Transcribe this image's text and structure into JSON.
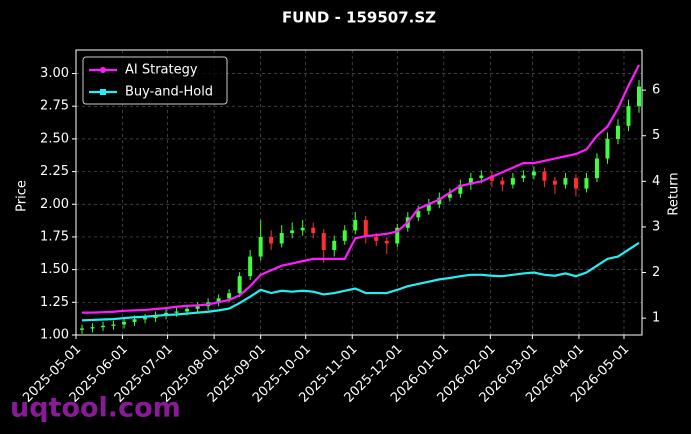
{
  "chart_data": {
    "type": "candlestick",
    "title": "FUND - 159507.SZ",
    "y_label": "Price",
    "y2_label": "Return",
    "watermark": "uqtool.com",
    "x": [
      "2025-05-05",
      "2025-05-12",
      "2025-05-19",
      "2025-05-26",
      "2025-06-02",
      "2025-06-09",
      "2025-06-16",
      "2025-06-23",
      "2025-06-30",
      "2025-07-07",
      "2025-07-14",
      "2025-07-21",
      "2025-07-28",
      "2025-08-04",
      "2025-08-11",
      "2025-08-18",
      "2025-08-25",
      "2025-09-01",
      "2025-09-08",
      "2025-09-15",
      "2025-09-22",
      "2025-09-29",
      "2025-10-06",
      "2025-10-13",
      "2025-10-20",
      "2025-10-27",
      "2025-11-03",
      "2025-11-10",
      "2025-11-17",
      "2025-11-24",
      "2025-12-01",
      "2025-12-08",
      "2025-12-15",
      "2025-12-22",
      "2025-12-29",
      "2026-01-05",
      "2026-01-12",
      "2026-01-19",
      "2026-01-26",
      "2026-02-02",
      "2026-02-09",
      "2026-02-16",
      "2026-02-23",
      "2026-03-02",
      "2026-03-09",
      "2026-03-16",
      "2026-03-23",
      "2026-03-30",
      "2026-04-06",
      "2026-04-13",
      "2026-04-20",
      "2026-04-27",
      "2026-05-04",
      "2026-05-11"
    ],
    "candles": {
      "open": [
        1.04,
        1.05,
        1.06,
        1.07,
        1.08,
        1.1,
        1.12,
        1.13,
        1.15,
        1.17,
        1.18,
        1.2,
        1.22,
        1.25,
        1.28,
        1.32,
        1.45,
        1.6,
        1.75,
        1.7,
        1.78,
        1.8,
        1.82,
        1.78,
        1.65,
        1.72,
        1.8,
        1.88,
        1.75,
        1.72,
        1.7,
        1.82,
        1.9,
        1.95,
        2.0,
        2.05,
        2.08,
        2.15,
        2.2,
        2.22,
        2.18,
        2.15,
        2.2,
        2.22,
        2.25,
        2.18,
        2.15,
        2.2,
        2.12,
        2.2,
        2.35,
        2.5,
        2.6,
        2.75
      ],
      "high": [
        1.08,
        1.09,
        1.1,
        1.11,
        1.13,
        1.15,
        1.16,
        1.18,
        1.2,
        1.21,
        1.23,
        1.25,
        1.28,
        1.31,
        1.35,
        1.48,
        1.65,
        1.88,
        1.8,
        1.84,
        1.86,
        1.88,
        1.86,
        1.81,
        1.76,
        1.84,
        1.94,
        1.91,
        1.78,
        1.75,
        1.85,
        1.94,
        1.99,
        2.04,
        2.09,
        2.12,
        2.19,
        2.24,
        2.26,
        2.25,
        2.21,
        2.24,
        2.26,
        2.29,
        2.28,
        2.21,
        2.24,
        2.23,
        2.24,
        2.39,
        2.55,
        2.65,
        2.8,
        2.95
      ],
      "low": [
        1.01,
        1.02,
        1.03,
        1.04,
        1.05,
        1.07,
        1.09,
        1.1,
        1.12,
        1.14,
        1.15,
        1.17,
        1.19,
        1.22,
        1.25,
        1.29,
        1.42,
        1.57,
        1.65,
        1.67,
        1.74,
        1.76,
        1.74,
        1.55,
        1.6,
        1.69,
        1.77,
        1.7,
        1.68,
        1.62,
        1.67,
        1.79,
        1.87,
        1.92,
        1.97,
        2.02,
        2.05,
        2.11,
        2.16,
        2.13,
        2.1,
        2.12,
        2.17,
        2.19,
        2.13,
        2.08,
        2.12,
        2.06,
        2.09,
        2.17,
        2.31,
        2.46,
        2.56,
        2.7
      ],
      "close": [
        1.05,
        1.06,
        1.07,
        1.08,
        1.1,
        1.12,
        1.13,
        1.15,
        1.17,
        1.18,
        1.2,
        1.22,
        1.25,
        1.28,
        1.32,
        1.45,
        1.6,
        1.75,
        1.7,
        1.78,
        1.8,
        1.82,
        1.78,
        1.65,
        1.72,
        1.8,
        1.88,
        1.75,
        1.72,
        1.7,
        1.82,
        1.9,
        1.95,
        2.0,
        2.05,
        2.08,
        2.15,
        2.2,
        2.22,
        2.18,
        2.15,
        2.2,
        2.22,
        2.25,
        2.18,
        2.15,
        2.2,
        2.12,
        2.2,
        2.35,
        2.5,
        2.6,
        2.75,
        2.9
      ],
      "up_color": "#3dff3d",
      "down_color": "#ff3030"
    },
    "series": [
      {
        "name": "AI Strategy",
        "color": "#ff1aff",
        "marker": "circle",
        "axis": "y2",
        "values": [
          1.12,
          1.12,
          1.13,
          1.14,
          1.16,
          1.17,
          1.18,
          1.2,
          1.22,
          1.25,
          1.27,
          1.28,
          1.3,
          1.35,
          1.4,
          1.5,
          1.7,
          1.95,
          2.05,
          2.15,
          2.2,
          2.25,
          2.3,
          2.3,
          2.3,
          2.3,
          2.75,
          2.8,
          2.82,
          2.85,
          2.9,
          3.1,
          3.4,
          3.5,
          3.6,
          3.75,
          3.9,
          3.95,
          4.0,
          4.1,
          4.2,
          4.3,
          4.4,
          4.4,
          4.45,
          4.5,
          4.55,
          4.6,
          4.7,
          5.0,
          5.2,
          5.6,
          6.1,
          6.55
        ]
      },
      {
        "name": "Buy-and-Hold",
        "color": "#22f0f5",
        "marker": "square",
        "axis": "y2",
        "values": [
          0.95,
          0.96,
          0.97,
          0.98,
          1.0,
          1.02,
          1.03,
          1.05,
          1.07,
          1.08,
          1.1,
          1.12,
          1.14,
          1.17,
          1.21,
          1.33,
          1.47,
          1.62,
          1.55,
          1.6,
          1.58,
          1.6,
          1.58,
          1.52,
          1.55,
          1.6,
          1.65,
          1.55,
          1.55,
          1.55,
          1.62,
          1.7,
          1.75,
          1.8,
          1.85,
          1.88,
          1.92,
          1.95,
          1.95,
          1.93,
          1.92,
          1.95,
          1.98,
          2.0,
          1.95,
          1.93,
          1.98,
          1.92,
          2.0,
          2.15,
          2.3,
          2.35,
          2.5,
          2.65
        ]
      }
    ],
    "xlim": [
      "2025-05-01",
      "2026-05-13"
    ],
    "xticks": [
      "2025-05-01",
      "2025-06-01",
      "2025-07-01",
      "2025-08-01",
      "2025-09-01",
      "2025-10-01",
      "2025-11-01",
      "2025-12-01",
      "2026-01-01",
      "2026-02-01",
      "2026-03-01",
      "2026-04-01",
      "2026-05-01"
    ],
    "ylim": [
      1.0,
      3.18
    ],
    "yticks": [
      {
        "value": 1,
        "label": "1.00"
      },
      {
        "value": 1.25,
        "label": "1.25"
      },
      {
        "value": 1.5,
        "label": "1.50"
      },
      {
        "value": 1.75,
        "label": "1.75"
      },
      {
        "value": 2,
        "label": "2.00"
      },
      {
        "value": 2.25,
        "label": "2.25"
      },
      {
        "value": 2.5,
        "label": "2.50"
      },
      {
        "value": 2.75,
        "label": "2.75"
      },
      {
        "value": 3,
        "label": "3.00"
      }
    ],
    "y2lim": [
      0.63,
      6.88
    ],
    "y2ticks": [
      1,
      2,
      3,
      4,
      5,
      6
    ],
    "grid": true,
    "legend": "upper left"
  }
}
